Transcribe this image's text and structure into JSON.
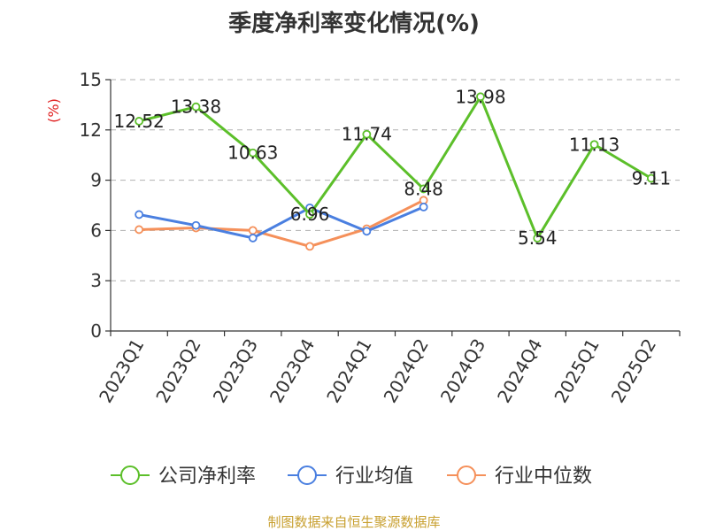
{
  "chart_data": {
    "type": "line",
    "title": "季度净利率变化情况(%)",
    "ylabel": "(%)",
    "xlabel": "",
    "ylim": [
      0,
      15
    ],
    "yticks": [
      0,
      3,
      6,
      9,
      12,
      15
    ],
    "categories": [
      "2023Q1",
      "2023Q2",
      "2023Q3",
      "2023Q4",
      "2024Q1",
      "2024Q2",
      "2024Q3",
      "2024Q4",
      "2025Q1",
      "2025Q2"
    ],
    "grid": true,
    "legend_position": "bottom",
    "series": [
      {
        "name": "公司净利率",
        "color": "#5cbf2a",
        "values": [
          12.52,
          13.38,
          10.63,
          6.96,
          11.74,
          8.48,
          13.98,
          5.54,
          11.13,
          9.11
        ],
        "labels": [
          "12.52",
          "13.38",
          "10.63",
          "6.96",
          "11.74",
          "8.48",
          "13.98",
          "5.54",
          "11.13",
          "9.11"
        ]
      },
      {
        "name": "行业均值",
        "color": "#4a7fe0",
        "values": [
          6.95,
          6.3,
          5.55,
          7.35,
          5.95,
          7.4,
          null,
          null,
          null,
          null
        ]
      },
      {
        "name": "行业中位数",
        "color": "#f5905a",
        "values": [
          6.05,
          6.15,
          6.0,
          5.05,
          6.1,
          7.8,
          null,
          null,
          null,
          null
        ]
      }
    ]
  },
  "source": "制图数据来自恒生聚源数据库"
}
